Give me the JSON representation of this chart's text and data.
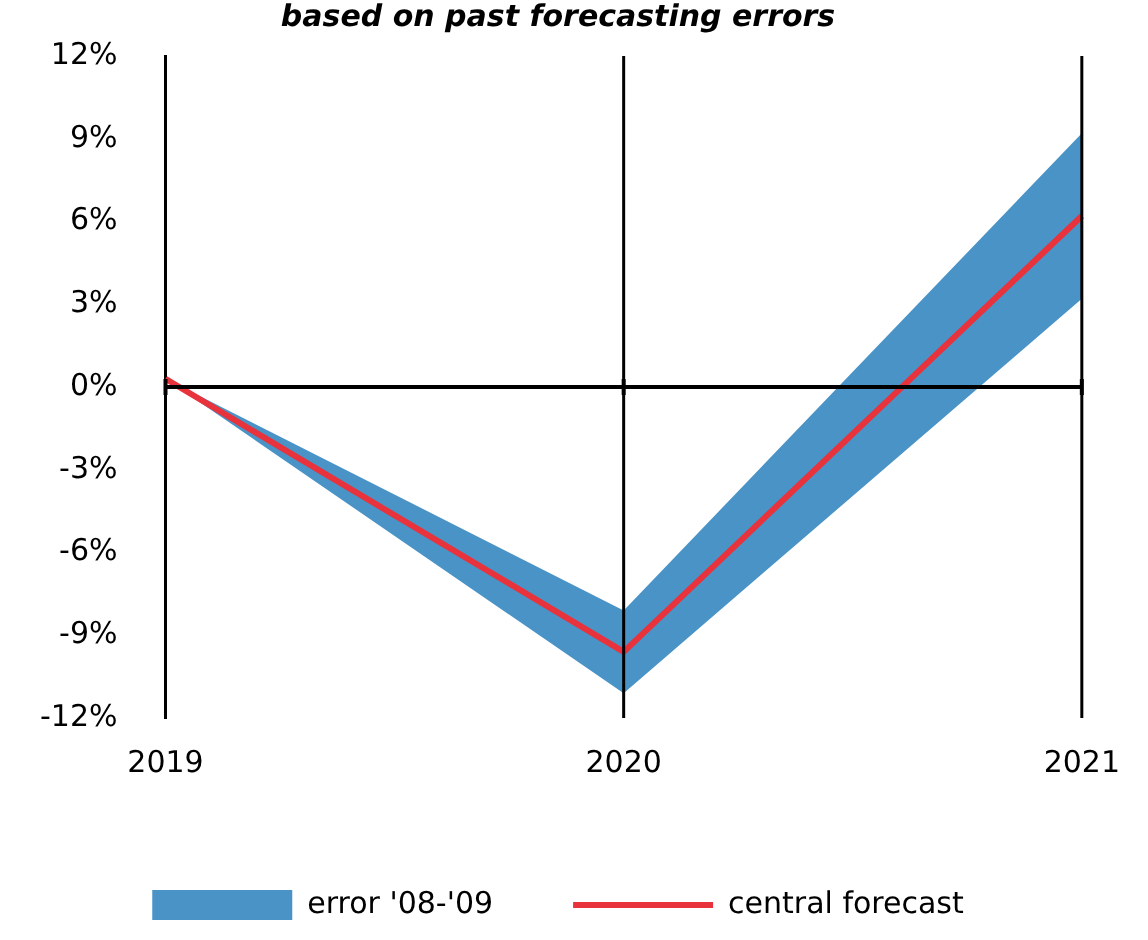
{
  "chart_data": {
    "type": "line",
    "title": "based on past forecasting errors",
    "categories": [
      "2019",
      "2020",
      "2021"
    ],
    "series": [
      {
        "name": "error '08-'09",
        "type": "area",
        "color": "#4a93c6",
        "values": [
          null,
          null,
          null
        ],
        "lower": [
          0.3,
          -11.1,
          3.2
        ],
        "upper": [
          0.3,
          -8.1,
          9.2
        ]
      },
      {
        "name": "central forecast",
        "type": "line",
        "color": "#e8323c",
        "values": [
          0.3,
          -9.6,
          6.2
        ]
      }
    ],
    "ylim": [
      -12,
      12
    ],
    "yticks": [
      {
        "value": -12,
        "label": "-12%"
      },
      {
        "value": -9,
        "label": "-9%"
      },
      {
        "value": -6,
        "label": "-6%"
      },
      {
        "value": -3,
        "label": "-3%"
      },
      {
        "value": 0,
        "label": "0%"
      },
      {
        "value": 3,
        "label": "3%"
      },
      {
        "value": 6,
        "label": "6%"
      },
      {
        "value": 9,
        "label": "9%"
      },
      {
        "value": 12,
        "label": "12%"
      }
    ],
    "ref_lines": [
      {
        "axis": "y",
        "value": 0,
        "color": "#000000"
      },
      {
        "axis": "x",
        "value": "2020",
        "color": "#000000"
      },
      {
        "axis": "x",
        "value": "2021",
        "color": "#000000"
      }
    ],
    "legend": "bottom",
    "marker": "none"
  }
}
